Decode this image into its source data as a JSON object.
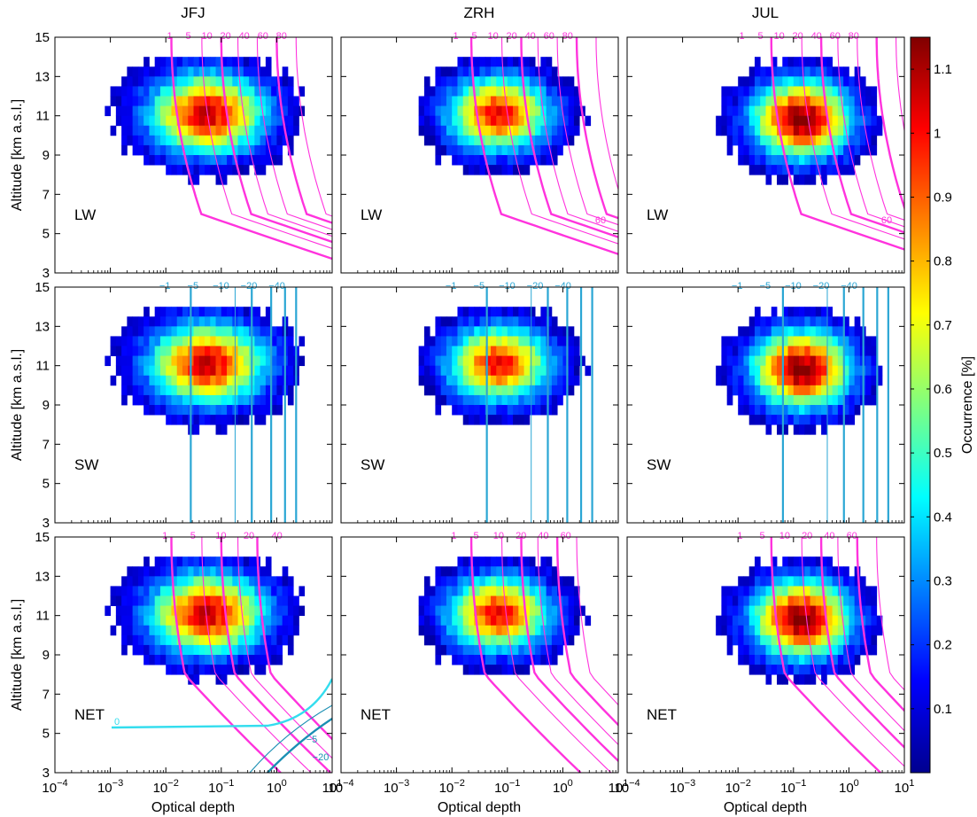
{
  "chart_data": {
    "type": "heatmap",
    "column_titles": [
      "JFJ",
      "ZRH",
      "JUL"
    ],
    "row_labels": [
      "LW",
      "SW",
      "NET"
    ],
    "xlabel": "Optical depth",
    "ylabel": "Altitude [km a.s.l.]",
    "x_scale": "log",
    "xlim": [
      0.0001,
      10
    ],
    "x_tick_labels": [
      {
        "base": "10",
        "exp": "−4"
      },
      {
        "base": "10",
        "exp": "−3"
      },
      {
        "base": "10",
        "exp": "−2"
      },
      {
        "base": "10",
        "exp": "−1"
      },
      {
        "base": "10",
        "exp": "0"
      },
      {
        "base": "10",
        "exp": "1"
      }
    ],
    "ylim": [
      3,
      15
    ],
    "y_ticks": [
      "3",
      "5",
      "7",
      "9",
      "11",
      "13",
      "15"
    ],
    "colorbar": {
      "label": "Occurrence [%]",
      "range": [
        0,
        1.15
      ],
      "ticks": [
        "0.1",
        "0.2",
        "0.3",
        "0.4",
        "0.5",
        "0.6",
        "0.7",
        "0.8",
        "0.9",
        "1",
        "1.1"
      ]
    },
    "colors": {
      "lw_contour": "#ff33dd",
      "sw_contour": "#2aa6d4",
      "net_negative": "#33ddee",
      "net_negative_dark": "#1a8fb3"
    },
    "panels": [
      {
        "station": "JFJ",
        "row": "LW",
        "contours": [
          {
            "label": "1",
            "thick": true
          },
          {
            "label": "5",
            "thick": false
          },
          {
            "label": "10",
            "thick": true
          },
          {
            "label": "20",
            "thick": false
          },
          {
            "label": "40",
            "thick": false
          },
          {
            "label": "60",
            "thick": true
          },
          {
            "label": "80",
            "thick": false
          }
        ],
        "extra_labels": []
      },
      {
        "station": "ZRH",
        "row": "LW",
        "contours": [
          {
            "label": "1",
            "thick": true
          },
          {
            "label": "5",
            "thick": false
          },
          {
            "label": "10",
            "thick": true
          },
          {
            "label": "20",
            "thick": false
          },
          {
            "label": "40",
            "thick": false
          },
          {
            "label": "60",
            "thick": true
          },
          {
            "label": "80",
            "thick": false
          }
        ],
        "extra_labels": [
          "60"
        ]
      },
      {
        "station": "JUL",
        "row": "LW",
        "contours": [
          {
            "label": "1",
            "thick": true
          },
          {
            "label": "5",
            "thick": false
          },
          {
            "label": "10",
            "thick": true
          },
          {
            "label": "20",
            "thick": false
          },
          {
            "label": "40",
            "thick": false
          },
          {
            "label": "60",
            "thick": true
          },
          {
            "label": "80",
            "thick": false
          }
        ],
        "extra_labels": [
          "60"
        ]
      },
      {
        "station": "JFJ",
        "row": "SW",
        "contours": [
          {
            "label": "−1",
            "thick": true
          },
          {
            "label": "−5",
            "thick": false
          },
          {
            "label": "−10",
            "thick": true
          },
          {
            "label": "−20",
            "thick": true
          },
          {
            "label": "−40",
            "thick": true
          }
        ],
        "extra_labels": []
      },
      {
        "station": "ZRH",
        "row": "SW",
        "contours": [
          {
            "label": "−1",
            "thick": true
          },
          {
            "label": "−5",
            "thick": false
          },
          {
            "label": "−10",
            "thick": true
          },
          {
            "label": "−20",
            "thick": true
          },
          {
            "label": "−40",
            "thick": true
          }
        ],
        "extra_labels": []
      },
      {
        "station": "JUL",
        "row": "SW",
        "contours": [
          {
            "label": "−1",
            "thick": true
          },
          {
            "label": "−5",
            "thick": false
          },
          {
            "label": "−10",
            "thick": true
          },
          {
            "label": "−20",
            "thick": true
          },
          {
            "label": "−40",
            "thick": true
          }
        ],
        "extra_labels": []
      },
      {
        "station": "JFJ",
        "row": "NET",
        "contours": [
          {
            "label": "1",
            "thick": true
          },
          {
            "label": "5",
            "thick": false
          },
          {
            "label": "10",
            "thick": true
          },
          {
            "label": "20",
            "thick": false
          },
          {
            "label": "40",
            "thick": true
          }
        ],
        "extra_labels": [
          "0",
          "−5",
          "−20"
        ]
      },
      {
        "station": "ZRH",
        "row": "NET",
        "contours": [
          {
            "label": "1",
            "thick": true
          },
          {
            "label": "5",
            "thick": false
          },
          {
            "label": "10",
            "thick": true
          },
          {
            "label": "20",
            "thick": false
          },
          {
            "label": "40",
            "thick": true
          },
          {
            "label": "60",
            "thick": false
          }
        ],
        "extra_labels": []
      },
      {
        "station": "JUL",
        "row": "NET",
        "contours": [
          {
            "label": "1",
            "thick": true
          },
          {
            "label": "5",
            "thick": false
          },
          {
            "label": "10",
            "thick": true
          },
          {
            "label": "20",
            "thick": false
          },
          {
            "label": "40",
            "thick": true
          },
          {
            "label": "60",
            "thick": false
          }
        ],
        "extra_labels": []
      }
    ]
  }
}
